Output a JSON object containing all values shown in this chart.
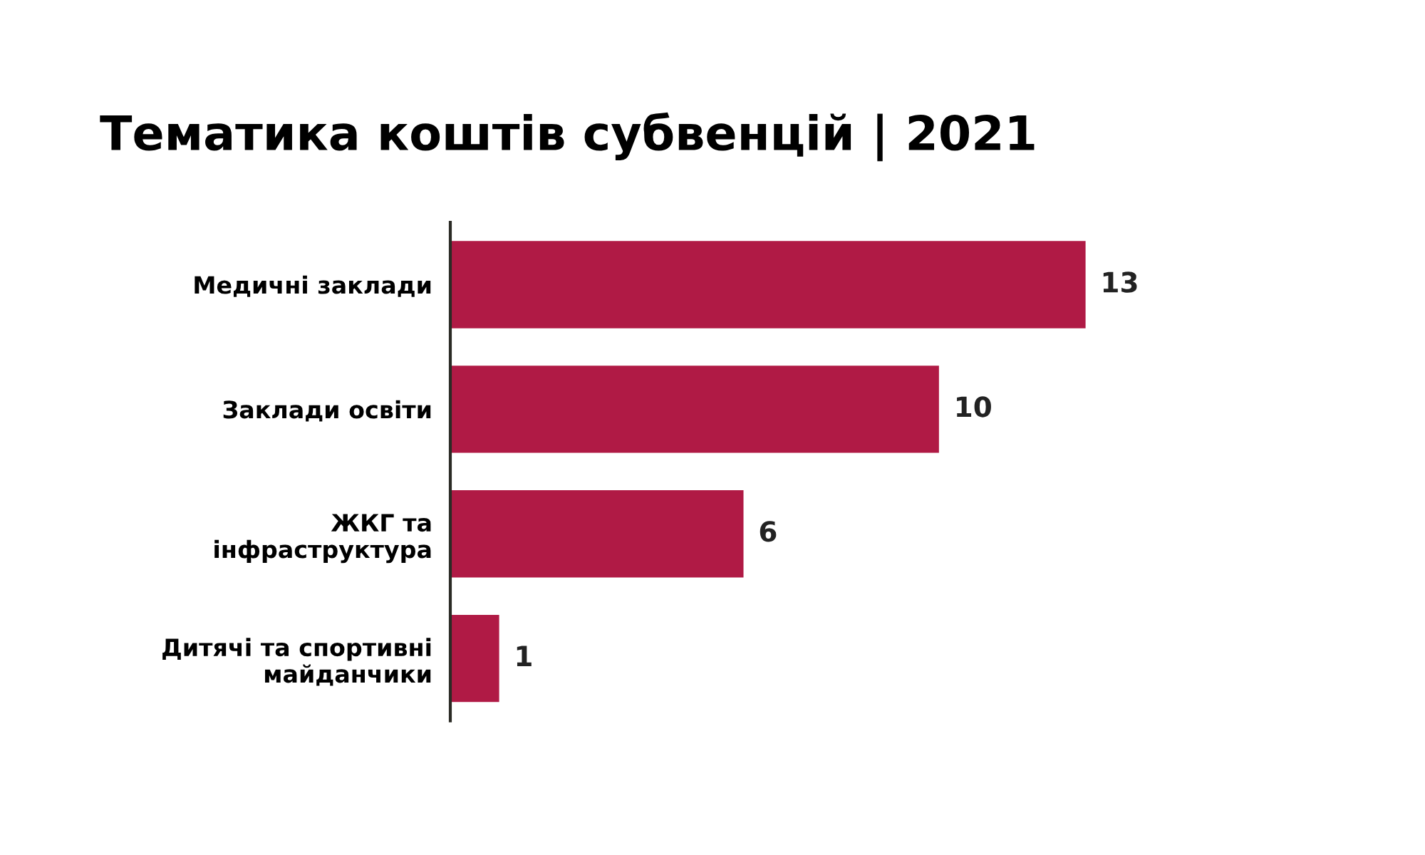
{
  "chart_data": {
    "type": "bar",
    "orientation": "horizontal",
    "title": "Тематика коштів субвенцій | 2021",
    "categories": [
      "Медичні заклади",
      "Заклади освіти",
      "ЖКГ та\nінфраструктура",
      "Дитячі та спортивні\nмайданчики"
    ],
    "values": [
      13,
      10,
      6,
      1
    ],
    "color": "#b01a45",
    "data_labels": true,
    "grid": false,
    "legend": false
  }
}
